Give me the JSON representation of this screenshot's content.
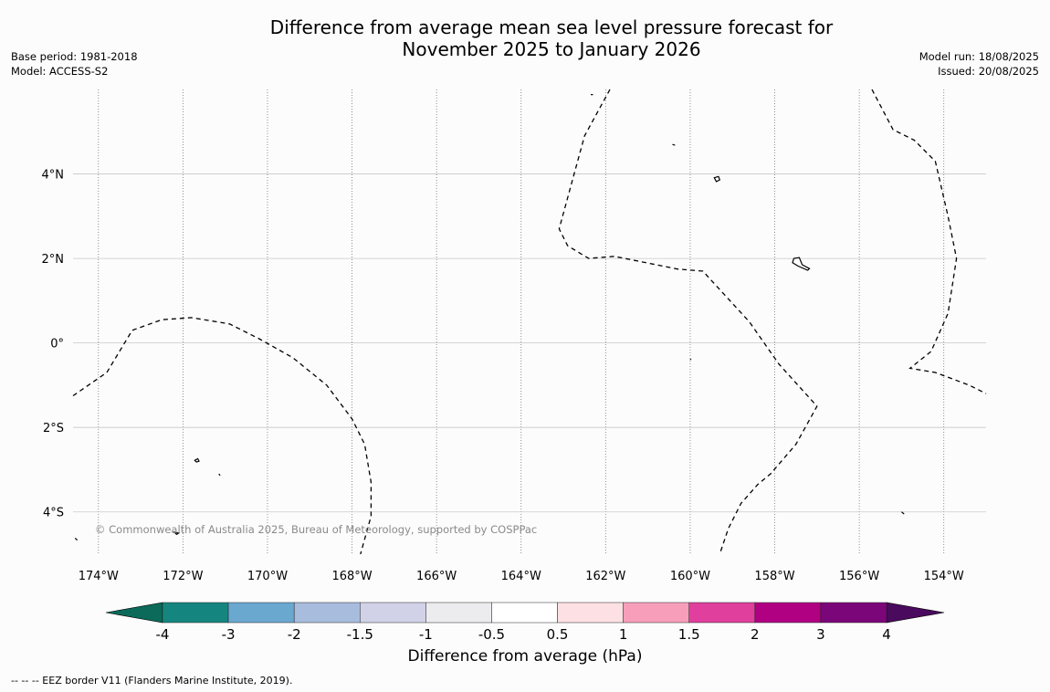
{
  "title_line1": "Difference from average mean sea level pressure forecast for",
  "title_line2": "November 2025 to January 2026",
  "meta_left": [
    "Base period: 1981-2018",
    "Model: ACCESS-S2"
  ],
  "meta_right": [
    "Model run: 18/08/2025",
    "Issued: 20/08/2025"
  ],
  "copyright": "© Commonwealth of Australia 2025, Bureau of Meteorology, supported by COSPPac",
  "map": {
    "lon_range": [
      -174.6,
      -153.0
    ],
    "lat_range": [
      -5.0,
      6.0
    ],
    "lon_ticks": [
      {
        "value": -174,
        "label": "174°W"
      },
      {
        "value": -172,
        "label": "172°W"
      },
      {
        "value": -170,
        "label": "170°W"
      },
      {
        "value": -168,
        "label": "168°W"
      },
      {
        "value": -166,
        "label": "166°W"
      },
      {
        "value": -164,
        "label": "164°W"
      },
      {
        "value": -162,
        "label": "162°W"
      },
      {
        "value": -160,
        "label": "160°W"
      },
      {
        "value": -158,
        "label": "158°W"
      },
      {
        "value": -156,
        "label": "156°W"
      },
      {
        "value": -154,
        "label": "154°W"
      }
    ],
    "lat_ticks": [
      {
        "value": 4,
        "label": "4°N"
      },
      {
        "value": 2,
        "label": "2°N"
      },
      {
        "value": 0,
        "label": "0°"
      },
      {
        "value": -2,
        "label": "2°S"
      },
      {
        "value": -4,
        "label": "4°S"
      }
    ],
    "eez_lines": [
      [
        [
          -174.6,
          -1.25
        ],
        [
          -173.8,
          -0.7
        ],
        [
          -173.2,
          0.3
        ],
        [
          -172.5,
          0.55
        ],
        [
          -171.8,
          0.6
        ],
        [
          -170.9,
          0.45
        ],
        [
          -170.2,
          0.1
        ],
        [
          -169.4,
          -0.35
        ],
        [
          -168.6,
          -1.0
        ],
        [
          -168.0,
          -1.8
        ],
        [
          -167.7,
          -2.4
        ],
        [
          -167.55,
          -3.3
        ],
        [
          -167.55,
          -4.1
        ],
        [
          -167.8,
          -5.0
        ]
      ],
      [
        [
          -161.9,
          6.0
        ],
        [
          -162.5,
          4.9
        ],
        [
          -163.1,
          2.7
        ],
        [
          -162.9,
          2.3
        ],
        [
          -162.4,
          2.0
        ],
        [
          -161.8,
          2.05
        ],
        [
          -160.8,
          1.85
        ],
        [
          -160.3,
          1.75
        ],
        [
          -159.7,
          1.7
        ],
        [
          -158.6,
          0.5
        ],
        [
          -157.9,
          -0.5
        ],
        [
          -157.0,
          -1.5
        ],
        [
          -157.5,
          -2.4
        ],
        [
          -158.1,
          -3.1
        ],
        [
          -158.4,
          -3.35
        ],
        [
          -158.8,
          -3.8
        ],
        [
          -159.1,
          -4.4
        ],
        [
          -159.3,
          -5.0
        ]
      ],
      [
        [
          -155.7,
          6.0
        ],
        [
          -155.2,
          5.05
        ],
        [
          -154.7,
          4.8
        ],
        [
          -154.2,
          4.3
        ],
        [
          -153.9,
          3.0
        ],
        [
          -153.7,
          2.0
        ],
        [
          -153.9,
          0.7
        ],
        [
          -154.3,
          -0.2
        ],
        [
          -154.8,
          -0.6
        ],
        [
          -154.2,
          -0.7
        ],
        [
          -153.4,
          -1.0
        ],
        [
          -153.0,
          -1.2
        ]
      ]
    ],
    "islands": [
      [
        [
          -171.72,
          -2.78
        ],
        [
          -171.65,
          -2.74
        ],
        [
          -171.62,
          -2.8
        ],
        [
          -171.68,
          -2.82
        ]
      ],
      [
        [
          -159.43,
          3.91
        ],
        [
          -159.33,
          3.94
        ],
        [
          -159.3,
          3.86
        ],
        [
          -159.38,
          3.82
        ]
      ],
      [
        [
          -157.55,
          2.0
        ],
        [
          -157.42,
          2.02
        ],
        [
          -157.35,
          1.85
        ],
        [
          -157.18,
          1.76
        ],
        [
          -157.22,
          1.72
        ],
        [
          -157.45,
          1.82
        ],
        [
          -157.58,
          1.9
        ]
      ],
      [
        [
          -172.2,
          -4.48
        ],
        [
          -172.1,
          -4.5
        ],
        [
          -172.15,
          -4.53
        ]
      ],
      [
        [
          -174.55,
          -4.62
        ],
        [
          -174.5,
          -4.67
        ]
      ],
      [
        [
          -162.35,
          5.88
        ],
        [
          -162.3,
          5.88
        ]
      ],
      [
        [
          -160.42,
          4.7
        ],
        [
          -160.36,
          4.68
        ]
      ],
      [
        [
          -171.15,
          -3.1
        ],
        [
          -171.12,
          -3.14
        ]
      ],
      [
        [
          -155.0,
          -4.0
        ],
        [
          -154.94,
          -4.05
        ]
      ],
      [
        [
          -160.0,
          -0.38
        ],
        [
          -159.98,
          -0.4
        ]
      ]
    ]
  },
  "colorbar": {
    "label": "Difference from average (hPa)",
    "boundaries": [
      "-4",
      "-3",
      "-2",
      "-1.5",
      "-1",
      "-0.5",
      "0.5",
      "1",
      "1.5",
      "2",
      "3",
      "4"
    ],
    "colors": [
      "#15867f",
      "#6aa8d0",
      "#a8bcdd",
      "#d1d2e8",
      "#ececef",
      "#ffffff",
      "#fde0e3",
      "#f79fba",
      "#e03f9d",
      "#b00183",
      "#7b0679"
    ],
    "under_color": "#0b6a5a",
    "over_color": "#4a0a5e"
  },
  "footer": "--  --  -- EEZ border V11 (Flanders Marine Institute, 2019)."
}
